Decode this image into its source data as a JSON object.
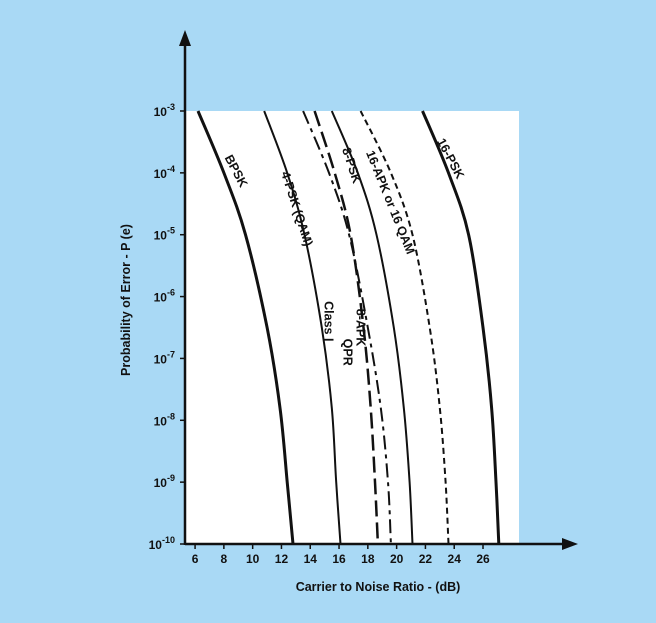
{
  "colors": {
    "panel_background": "#a9d9f5",
    "plot_background": "#ffffff",
    "ink": "#111111"
  },
  "chart_data": {
    "type": "line",
    "title": "",
    "xlabel": "Carrier to Noise Ratio - (dB)",
    "ylabel": "Probability of Error - P (e)",
    "x_ticks": [
      "6",
      "8",
      "10",
      "12",
      "14",
      "16",
      "18",
      "20",
      "22",
      "24",
      "26"
    ],
    "y_ticks": [
      {
        "base": "10",
        "exp": "-3",
        "value": 0.001
      },
      {
        "base": "10",
        "exp": "-4",
        "value": 0.0001
      },
      {
        "base": "10",
        "exp": "-5",
        "value": 1e-05
      },
      {
        "base": "10",
        "exp": "-6",
        "value": 1e-06
      },
      {
        "base": "10",
        "exp": "-7",
        "value": 1e-07
      },
      {
        "base": "10",
        "exp": "-8",
        "value": 1e-08
      },
      {
        "base": "10",
        "exp": "-9",
        "value": 1e-09
      },
      {
        "base": "10",
        "exp": "-10",
        "value": 1e-10
      }
    ],
    "xlim": [
      5.3,
      28.5
    ],
    "ylim_log10": [
      -10,
      -3
    ],
    "y_scale": "log",
    "grid": false,
    "series": [
      {
        "name": "BPSK",
        "style": "solid",
        "width": 3,
        "x": [
          6.2,
          8.0,
          9.5,
          11.0,
          11.9,
          12.4,
          12.8
        ],
        "log10_y": [
          -3,
          -4,
          -5,
          -6.5,
          -7.8,
          -9,
          -10
        ]
      },
      {
        "name": "4-PSK (QAM)",
        "style": "solid",
        "width": 2,
        "x": [
          10.8,
          12.4,
          13.6,
          14.8,
          15.5,
          15.8,
          16.1
        ],
        "log10_y": [
          -3,
          -4,
          -5,
          -6.5,
          -7.8,
          -9,
          -10
        ]
      },
      {
        "name": "Class I QPR",
        "style": "longdash",
        "width": 2.5,
        "x": [
          14.3,
          15.7,
          16.8,
          17.7,
          18.2,
          18.5,
          18.7
        ],
        "log10_y": [
          -3,
          -4,
          -5,
          -6.5,
          -7.8,
          -9,
          -10
        ]
      },
      {
        "name": "8-APK",
        "style": "dashdot",
        "width": 2,
        "x": [
          13.5,
          15.3,
          16.7,
          18.0,
          18.9,
          19.4,
          19.6
        ],
        "log10_y": [
          -3,
          -4,
          -5,
          -6.5,
          -7.8,
          -9,
          -10
        ]
      },
      {
        "name": "8-PSK",
        "style": "solid",
        "width": 2,
        "x": [
          15.5,
          17.3,
          18.6,
          19.8,
          20.5,
          20.9,
          21.1
        ],
        "log10_y": [
          -3,
          -4,
          -5,
          -6.5,
          -7.8,
          -9,
          -10
        ]
      },
      {
        "name": "16-APK or 16 QAM",
        "style": "shortdash",
        "width": 2,
        "x": [
          17.5,
          19.6,
          21.1,
          22.3,
          23.0,
          23.4,
          23.6
        ],
        "log10_y": [
          -3,
          -4,
          -5,
          -6.5,
          -7.8,
          -9,
          -10
        ]
      },
      {
        "name": "16-PSK",
        "style": "solid",
        "width": 3,
        "x": [
          21.8,
          23.6,
          25.0,
          26.0,
          26.6,
          26.9,
          27.1
        ],
        "log10_y": [
          -3,
          -4,
          -5,
          -6.5,
          -7.8,
          -9,
          -10
        ]
      }
    ],
    "curve_labels": [
      {
        "text": "BPSK",
        "x": 8.6,
        "log10_y": -4.0,
        "angle": 62
      },
      {
        "text": "4-PSK (QAM)",
        "x": 12.8,
        "log10_y": -4.6,
        "angle": 72
      },
      {
        "text": "Class I",
        "x": 15.0,
        "log10_y": -6.4,
        "angle": 90
      },
      {
        "text": "QPR",
        "x": 16.3,
        "log10_y": -6.9,
        "angle": 90
      },
      {
        "text": "8-APK",
        "x": 17.2,
        "log10_y": -6.5,
        "angle": 90
      },
      {
        "text": "8-PSK",
        "x": 16.6,
        "log10_y": -3.9,
        "angle": 72
      },
      {
        "text": "16-APK or 16 QAM",
        "x": 19.3,
        "log10_y": -4.5,
        "angle": 68
      },
      {
        "text": "16-PSK",
        "x": 23.5,
        "log10_y": -3.8,
        "angle": 62
      }
    ]
  }
}
